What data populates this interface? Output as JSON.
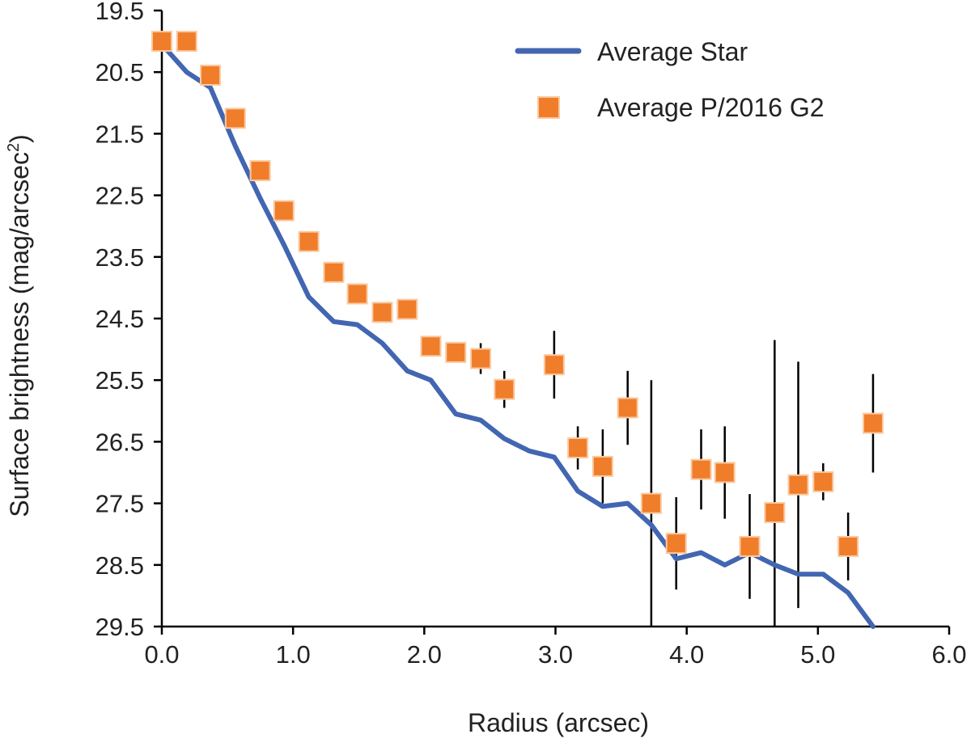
{
  "chart_data": {
    "type": "line+scatter",
    "title": "",
    "xlabel": "Radius (arcsec)",
    "ylabel": "Surface brightness (mag/arcsec",
    "ylabel_superscript": "2",
    "ylabel_suffix": ")",
    "xlim": [
      0.0,
      6.0
    ],
    "ylim": [
      19.5,
      29.5
    ],
    "y_inverted": true,
    "grid": false,
    "legend_position": "top-right",
    "x_ticks": [
      "0.0",
      "1.0",
      "2.0",
      "3.0",
      "4.0",
      "5.0",
      "6.0"
    ],
    "x_tick_values": [
      0,
      1,
      2,
      3,
      4,
      5,
      6
    ],
    "y_ticks": [
      "19.5",
      "20.5",
      "21.5",
      "22.5",
      "23.5",
      "24.5",
      "25.5",
      "26.5",
      "27.5",
      "28.5",
      "29.5"
    ],
    "y_tick_values": [
      19.5,
      20.5,
      21.5,
      22.5,
      23.5,
      24.5,
      25.5,
      26.5,
      27.5,
      28.5,
      29.5
    ],
    "series": [
      {
        "name": "Average Star",
        "kind": "line",
        "color": "#4266b1",
        "points": [
          [
            0.0,
            20.05
          ],
          [
            0.19,
            20.5
          ],
          [
            0.37,
            20.75
          ],
          [
            0.56,
            21.7
          ],
          [
            0.75,
            22.55
          ],
          [
            0.93,
            23.3
          ],
          [
            1.12,
            24.15
          ],
          [
            1.31,
            24.55
          ],
          [
            1.49,
            24.6
          ],
          [
            1.68,
            24.9
          ],
          [
            1.87,
            25.35
          ],
          [
            2.05,
            25.5
          ],
          [
            2.24,
            26.05
          ],
          [
            2.43,
            26.15
          ],
          [
            2.61,
            26.45
          ],
          [
            2.8,
            26.65
          ],
          [
            2.99,
            26.75
          ],
          [
            3.17,
            27.3
          ],
          [
            3.36,
            27.55
          ],
          [
            3.55,
            27.5
          ],
          [
            3.73,
            27.85
          ],
          [
            3.92,
            28.4
          ],
          [
            4.11,
            28.3
          ],
          [
            4.29,
            28.5
          ],
          [
            4.48,
            28.3
          ],
          [
            4.67,
            28.5
          ],
          [
            4.85,
            28.65
          ],
          [
            5.04,
            28.65
          ],
          [
            5.23,
            28.95
          ],
          [
            5.42,
            29.5
          ]
        ]
      },
      {
        "name": "Average P/2016 G2",
        "kind": "scatter",
        "color": "#f07d2a",
        "marker_edge": "#fbc9a0",
        "points": [
          {
            "x": 0.0,
            "y": 20.0,
            "err": 0
          },
          {
            "x": 0.19,
            "y": 20.0,
            "err": 0
          },
          {
            "x": 0.37,
            "y": 20.55,
            "err": 0
          },
          {
            "x": 0.56,
            "y": 21.25,
            "err": 0
          },
          {
            "x": 0.75,
            "y": 22.1,
            "err": 0
          },
          {
            "x": 0.93,
            "y": 22.75,
            "err": 0
          },
          {
            "x": 1.12,
            "y": 23.25,
            "err": 0
          },
          {
            "x": 1.31,
            "y": 23.75,
            "err": 0
          },
          {
            "x": 1.49,
            "y": 24.1,
            "err": 0
          },
          {
            "x": 1.68,
            "y": 24.4,
            "err": 0
          },
          {
            "x": 1.87,
            "y": 24.35,
            "err": 0
          },
          {
            "x": 2.05,
            "y": 24.95,
            "err": 0.15
          },
          {
            "x": 2.24,
            "y": 25.05,
            "err": 0.1
          },
          {
            "x": 2.43,
            "y": 25.15,
            "err": 0.25
          },
          {
            "x": 2.61,
            "y": 25.65,
            "err": 0.3
          },
          {
            "x": 2.99,
            "y": 25.25,
            "err": 0.55
          },
          {
            "x": 3.17,
            "y": 26.6,
            "err": 0.35
          },
          {
            "x": 3.36,
            "y": 26.9,
            "err": 0.6
          },
          {
            "x": 3.55,
            "y": 25.95,
            "err": 0.6
          },
          {
            "x": 3.73,
            "y": 27.5,
            "err": 2.0
          },
          {
            "x": 3.92,
            "y": 28.15,
            "err": 0.75
          },
          {
            "x": 4.11,
            "y": 26.95,
            "err": 0.65
          },
          {
            "x": 4.29,
            "y": 27.0,
            "err": 0.75
          },
          {
            "x": 4.48,
            "y": 28.2,
            "err": 0.85
          },
          {
            "x": 4.67,
            "y": 27.65,
            "err": 2.8
          },
          {
            "x": 4.85,
            "y": 27.2,
            "err": 2.0
          },
          {
            "x": 5.04,
            "y": 27.15,
            "err": 0.3
          },
          {
            "x": 5.23,
            "y": 28.2,
            "err": 0.55
          },
          {
            "x": 5.42,
            "y": 26.2,
            "err": 0.8
          }
        ]
      }
    ]
  }
}
